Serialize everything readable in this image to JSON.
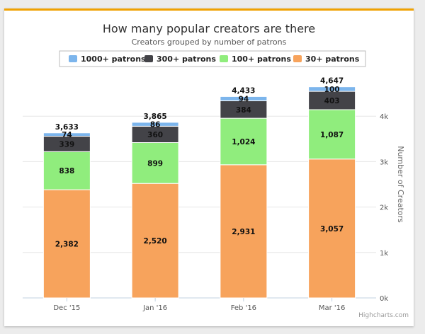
{
  "chart_data": {
    "type": "bar",
    "stacked": true,
    "title": "How many popular creators are there",
    "subtitle": "Creators grouped by number of patrons",
    "ylabel": "Number of Creators",
    "ylim": [
      0,
      5000
    ],
    "yticks": [
      0,
      1000,
      2000,
      3000,
      4000
    ],
    "ytick_labels": [
      "0k",
      "1k",
      "2k",
      "3k",
      "4k"
    ],
    "y_axis_side": "right",
    "grid": true,
    "legend_position": "top",
    "categories": [
      "Dec '15",
      "Jan '16",
      "Feb '16",
      "Mar '16"
    ],
    "series": [
      {
        "name": "1000+ patrons",
        "color": "#7cb5ec",
        "values": [
          74,
          86,
          94,
          100
        ],
        "labels": [
          "74",
          "86",
          "94",
          "100"
        ]
      },
      {
        "name": "300+ patrons",
        "color": "#434348",
        "values": [
          339,
          360,
          384,
          403
        ],
        "labels": [
          "339",
          "360",
          "384",
          "403"
        ]
      },
      {
        "name": "100+ patrons",
        "color": "#90ed7d",
        "values": [
          838,
          899,
          1024,
          1087
        ],
        "labels": [
          "838",
          "899",
          "1,024",
          "1,087"
        ]
      },
      {
        "name": "30+ patrons",
        "color": "#f7a35c",
        "values": [
          2382,
          2520,
          2931,
          3057
        ],
        "labels": [
          "2,382",
          "2,520",
          "2,931",
          "3,057"
        ]
      }
    ],
    "totals": [
      3633,
      3865,
      4433,
      4647
    ],
    "total_labels": [
      "3,633",
      "3,865",
      "4,433",
      "4,647"
    ],
    "credits": "Highcharts.com"
  }
}
